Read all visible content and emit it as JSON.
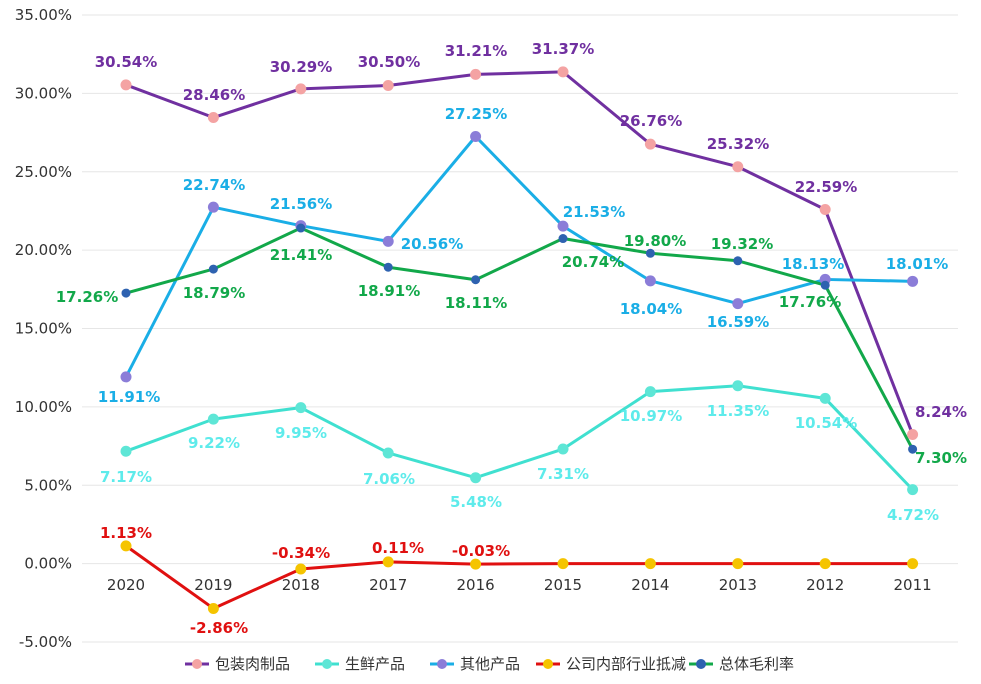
{
  "chart_data": {
    "type": "line",
    "title": "",
    "xlabel": "",
    "ylabel": "",
    "categories": [
      "2020",
      "2019",
      "2018",
      "2017",
      "2016",
      "2015",
      "2014",
      "2013",
      "2012",
      "2011"
    ],
    "ylim": [
      -5,
      35
    ],
    "yticks": [
      "-5.00%",
      "0.00%",
      "5.00%",
      "10.00%",
      "15.00%",
      "20.00%",
      "25.00%",
      "30.00%",
      "35.00%"
    ],
    "ytick_values": [
      -5,
      0,
      5,
      10,
      15,
      20,
      25,
      30,
      35
    ],
    "grid": true,
    "legend_position": "bottom",
    "series": [
      {
        "name": "包装肉制品",
        "line_color": "#7030A0",
        "marker_color": "#F4A3A3",
        "label_color": "#7030A0",
        "values": [
          30.54,
          28.46,
          30.29,
          30.5,
          31.21,
          31.37,
          26.76,
          25.32,
          22.59,
          8.24
        ],
        "labels": [
          "30.54%",
          "28.46%",
          "30.29%",
          "30.50%",
          "31.21%",
          "31.37%",
          "26.76%",
          "25.32%",
          "22.59%",
          "8.24%"
        ]
      },
      {
        "name": "生鲜产品",
        "line_color": "#40E0D0",
        "marker_color": "#5EE6D6",
        "label_color": "#5EEBEB",
        "values": [
          7.17,
          9.22,
          9.95,
          7.06,
          5.48,
          7.31,
          10.97,
          11.35,
          10.54,
          4.72
        ],
        "labels": [
          "7.17%",
          "9.22%",
          "9.95%",
          "7.06%",
          "5.48%",
          "7.31%",
          "10.97%",
          "11.35%",
          "10.54%",
          "4.72%"
        ]
      },
      {
        "name": "其他产品",
        "line_color": "#1AAEE6",
        "marker_color": "#8B7DD8",
        "label_color": "#1AAEE6",
        "values": [
          11.91,
          22.74,
          21.56,
          20.56,
          27.25,
          21.53,
          18.04,
          16.59,
          18.13,
          18.01
        ],
        "labels": [
          "11.91%",
          "22.74%",
          "21.56%",
          "20.56%",
          "27.25%",
          "21.53%",
          "18.04%",
          "16.59%",
          "18.13%",
          "18.01%"
        ]
      },
      {
        "name": "公司内部行业抵减",
        "line_color": "#E01010",
        "marker_color": "#F5C400",
        "label_color": "#E01010",
        "values": [
          1.13,
          -2.86,
          -0.34,
          0.11,
          -0.03,
          0,
          0,
          0,
          0,
          0
        ],
        "labels": [
          "1.13%",
          "-2.86%",
          "-0.34%",
          "0.11%",
          "-0.03%",
          null,
          null,
          null,
          null,
          null
        ]
      },
      {
        "name": "总体毛利率",
        "line_color": "#12A84A",
        "marker_color": "#2E62B0",
        "label_color": "#12A84A",
        "values": [
          17.26,
          18.79,
          21.41,
          18.91,
          18.11,
          20.74,
          19.8,
          19.32,
          17.76,
          7.3
        ],
        "labels": [
          "17.26%",
          "18.79%",
          "21.41%",
          "18.91%",
          "18.11%",
          "20.74%",
          "19.80%",
          "19.32%",
          "17.76%",
          "7.30%"
        ]
      }
    ]
  }
}
